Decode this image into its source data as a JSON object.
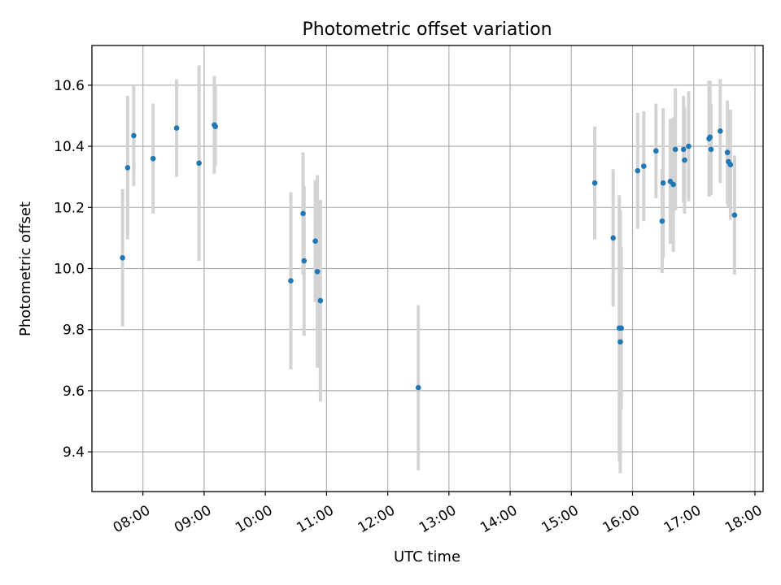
{
  "chart_data": {
    "type": "scatter",
    "title": "Photometric offset variation",
    "xlabel": "UTC time",
    "ylabel": "Photometric offset",
    "grid": true,
    "colors": {
      "points": "#1f77b4",
      "errorbars": "#d3d3d3"
    },
    "x_axis": {
      "xlim": [
        "07:10",
        "18:08"
      ],
      "ticks": [
        "08:00",
        "09:00",
        "10:00",
        "11:00",
        "12:00",
        "13:00",
        "14:00",
        "15:00",
        "16:00",
        "17:00",
        "18:00"
      ]
    },
    "y_axis": {
      "ylim": [
        9.27,
        10.73
      ],
      "ticks": [
        "9.4",
        "9.6",
        "9.8",
        "10.0",
        "10.2",
        "10.4",
        "10.6"
      ]
    },
    "series": [
      {
        "points": [
          {
            "x": "07:40",
            "y": 10.035,
            "err": 0.225
          },
          {
            "x": "07:45",
            "y": 10.33,
            "err": 0.235
          },
          {
            "x": "07:51",
            "y": 10.435,
            "err": 0.165
          },
          {
            "x": "08:10",
            "y": 10.36,
            "err": 0.18
          },
          {
            "x": "08:33",
            "y": 10.46,
            "err": 0.16
          },
          {
            "x": "08:55",
            "y": 10.345,
            "err": 0.32
          },
          {
            "x": "09:10",
            "y": 10.47,
            "err": 0.16
          },
          {
            "x": "09:11",
            "y": 10.465,
            "err": 0.13
          },
          {
            "x": "10:25",
            "y": 9.96,
            "err": 0.29
          },
          {
            "x": "10:37",
            "y": 10.18,
            "err": 0.2
          },
          {
            "x": "10:38",
            "y": 10.025,
            "err": 0.245
          },
          {
            "x": "10:49",
            "y": 10.09,
            "err": 0.2
          },
          {
            "x": "10:51",
            "y": 9.99,
            "err": 0.315
          },
          {
            "x": "10:54",
            "y": 9.895,
            "err": 0.33
          },
          {
            "x": "12:30",
            "y": 9.61,
            "err": 0.27
          },
          {
            "x": "15:23",
            "y": 10.28,
            "err": 0.185
          },
          {
            "x": "15:41",
            "y": 10.1,
            "err": 0.225
          },
          {
            "x": "15:47",
            "y": 9.805,
            "err": 0.435
          },
          {
            "x": "15:48",
            "y": 9.76,
            "err": 0.43
          },
          {
            "x": "15:49",
            "y": 9.805,
            "err": 0.265
          },
          {
            "x": "16:05",
            "y": 10.32,
            "err": 0.19
          },
          {
            "x": "16:11",
            "y": 10.335,
            "err": 0.18
          },
          {
            "x": "16:23",
            "y": 10.385,
            "err": 0.155
          },
          {
            "x": "16:29",
            "y": 10.155,
            "err": 0.17
          },
          {
            "x": "16:30",
            "y": 10.28,
            "err": 0.245
          },
          {
            "x": "16:37",
            "y": 10.285,
            "err": 0.205
          },
          {
            "x": "16:40",
            "y": 10.275,
            "err": 0.22
          },
          {
            "x": "16:42",
            "y": 10.39,
            "err": 0.2
          },
          {
            "x": "16:50",
            "y": 10.39,
            "err": 0.175
          },
          {
            "x": "16:51",
            "y": 10.355,
            "err": 0.175
          },
          {
            "x": "16:55",
            "y": 10.4,
            "err": 0.18
          },
          {
            "x": "17:15",
            "y": 10.425,
            "err": 0.19
          },
          {
            "x": "17:16",
            "y": 10.43,
            "err": 0.185
          },
          {
            "x": "17:17",
            "y": 10.39,
            "err": 0.15
          },
          {
            "x": "17:26",
            "y": 10.45,
            "err": 0.17
          },
          {
            "x": "17:33",
            "y": 10.38,
            "err": 0.17
          },
          {
            "x": "17:34",
            "y": 10.35,
            "err": 0.15
          },
          {
            "x": "17:36",
            "y": 10.34,
            "err": 0.18
          },
          {
            "x": "17:40",
            "y": 10.175,
            "err": 0.195
          }
        ]
      }
    ]
  }
}
